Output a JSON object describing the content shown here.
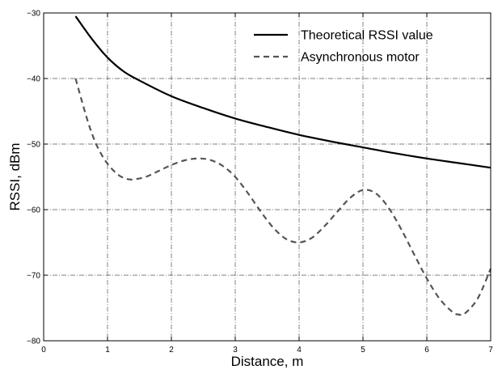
{
  "chart_data": {
    "type": "line",
    "title": "",
    "xlabel": "Distance, m",
    "ylabel": "RSSI, dBm",
    "xlim": [
      0,
      7
    ],
    "ylim": [
      -80,
      -30
    ],
    "xticks": [
      0,
      1,
      2,
      3,
      4,
      5,
      6,
      7
    ],
    "yticks": [
      -80,
      -70,
      -60,
      -50,
      -40,
      -30
    ],
    "grid": "dash-dot",
    "legend_position": "top-right",
    "series": [
      {
        "name": "Theoretical RSSI value",
        "style": "solid",
        "color": "#000000",
        "x": [
          0.5,
          0.75,
          1.0,
          1.25,
          1.5,
          2.0,
          2.5,
          3.0,
          3.5,
          4.0,
          4.5,
          5.0,
          5.5,
          6.0,
          6.5,
          7.0
        ],
        "y": [
          -30.5,
          -33.9,
          -36.8,
          -38.9,
          -40.3,
          -42.7,
          -44.5,
          -46.1,
          -47.4,
          -48.6,
          -49.6,
          -50.5,
          -51.4,
          -52.2,
          -52.9,
          -53.6
        ]
      },
      {
        "name": "Asynchronous motor",
        "style": "dashed",
        "color": "#555555",
        "x": [
          0.5,
          0.6,
          0.7,
          0.8,
          0.9,
          1.0,
          1.1,
          1.2,
          1.3,
          1.4,
          1.6,
          1.8,
          2.0,
          2.2,
          2.4,
          2.6,
          2.8,
          3.0,
          3.2,
          3.4,
          3.6,
          3.8,
          4.0,
          4.2,
          4.4,
          4.6,
          4.8,
          5.0,
          5.2,
          5.4,
          5.6,
          5.8,
          6.0,
          6.2,
          6.4,
          6.5,
          6.6,
          6.8,
          7.0
        ],
        "y": [
          -40.0,
          -43.5,
          -46.8,
          -49.5,
          -51.5,
          -53.0,
          -54.1,
          -54.9,
          -55.3,
          -55.4,
          -55.0,
          -54.1,
          -53.2,
          -52.5,
          -52.2,
          -52.4,
          -53.3,
          -55.0,
          -57.5,
          -60.3,
          -62.8,
          -64.5,
          -65.0,
          -64.3,
          -62.5,
          -60.3,
          -58.2,
          -57.0,
          -57.5,
          -59.7,
          -63.0,
          -66.8,
          -70.5,
          -73.6,
          -75.6,
          -76.0,
          -75.8,
          -73.5,
          -69.0
        ]
      }
    ]
  }
}
